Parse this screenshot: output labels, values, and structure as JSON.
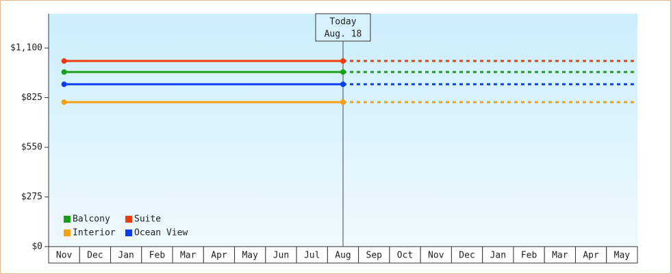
{
  "chart_data": {
    "type": "line",
    "categories": [
      "Nov",
      "Dec",
      "Jan",
      "Feb",
      "Mar",
      "Apr",
      "May",
      "Jun",
      "Jul",
      "Aug",
      "Sep",
      "Oct",
      "Nov",
      "Dec",
      "Jan",
      "Feb",
      "Mar",
      "Apr",
      "May"
    ],
    "series": [
      {
        "name": "Balcony",
        "color": "#16a016",
        "values": [
          967,
          967,
          967,
          967,
          967,
          967,
          967,
          967,
          967,
          967,
          null,
          null,
          null,
          null,
          null,
          null,
          null,
          null,
          null
        ]
      },
      {
        "name": "Suite",
        "color": "#f03c0c",
        "values": [
          1028,
          1028,
          1028,
          1028,
          1028,
          1028,
          1028,
          1028,
          1028,
          1028,
          null,
          null,
          null,
          null,
          null,
          null,
          null,
          null,
          null
        ]
      },
      {
        "name": "Interior",
        "color": "#f5a010",
        "values": [
          800,
          800,
          800,
          800,
          800,
          800,
          800,
          800,
          800,
          800,
          null,
          null,
          null,
          null,
          null,
          null,
          null,
          null,
          null
        ]
      },
      {
        "name": "Ocean View",
        "color": "#0a3cf0",
        "values": [
          899,
          899,
          899,
          899,
          899,
          899,
          899,
          899,
          899,
          899,
          null,
          null,
          null,
          null,
          null,
          null,
          null,
          null,
          null
        ]
      }
    ],
    "ylim": [
      0,
      1290
    ],
    "yticks": [
      {
        "value": 0,
        "label": "$0"
      },
      {
        "value": 275,
        "label": "$275"
      },
      {
        "value": 550,
        "label": "$550"
      },
      {
        "value": 825,
        "label": "$825"
      },
      {
        "value": 1100,
        "label": "$1,100"
      }
    ],
    "grid": false,
    "legend": "lower-left",
    "annotation": {
      "lines": [
        "Today",
        "Aug. 18"
      ],
      "category_index": 9
    }
  }
}
